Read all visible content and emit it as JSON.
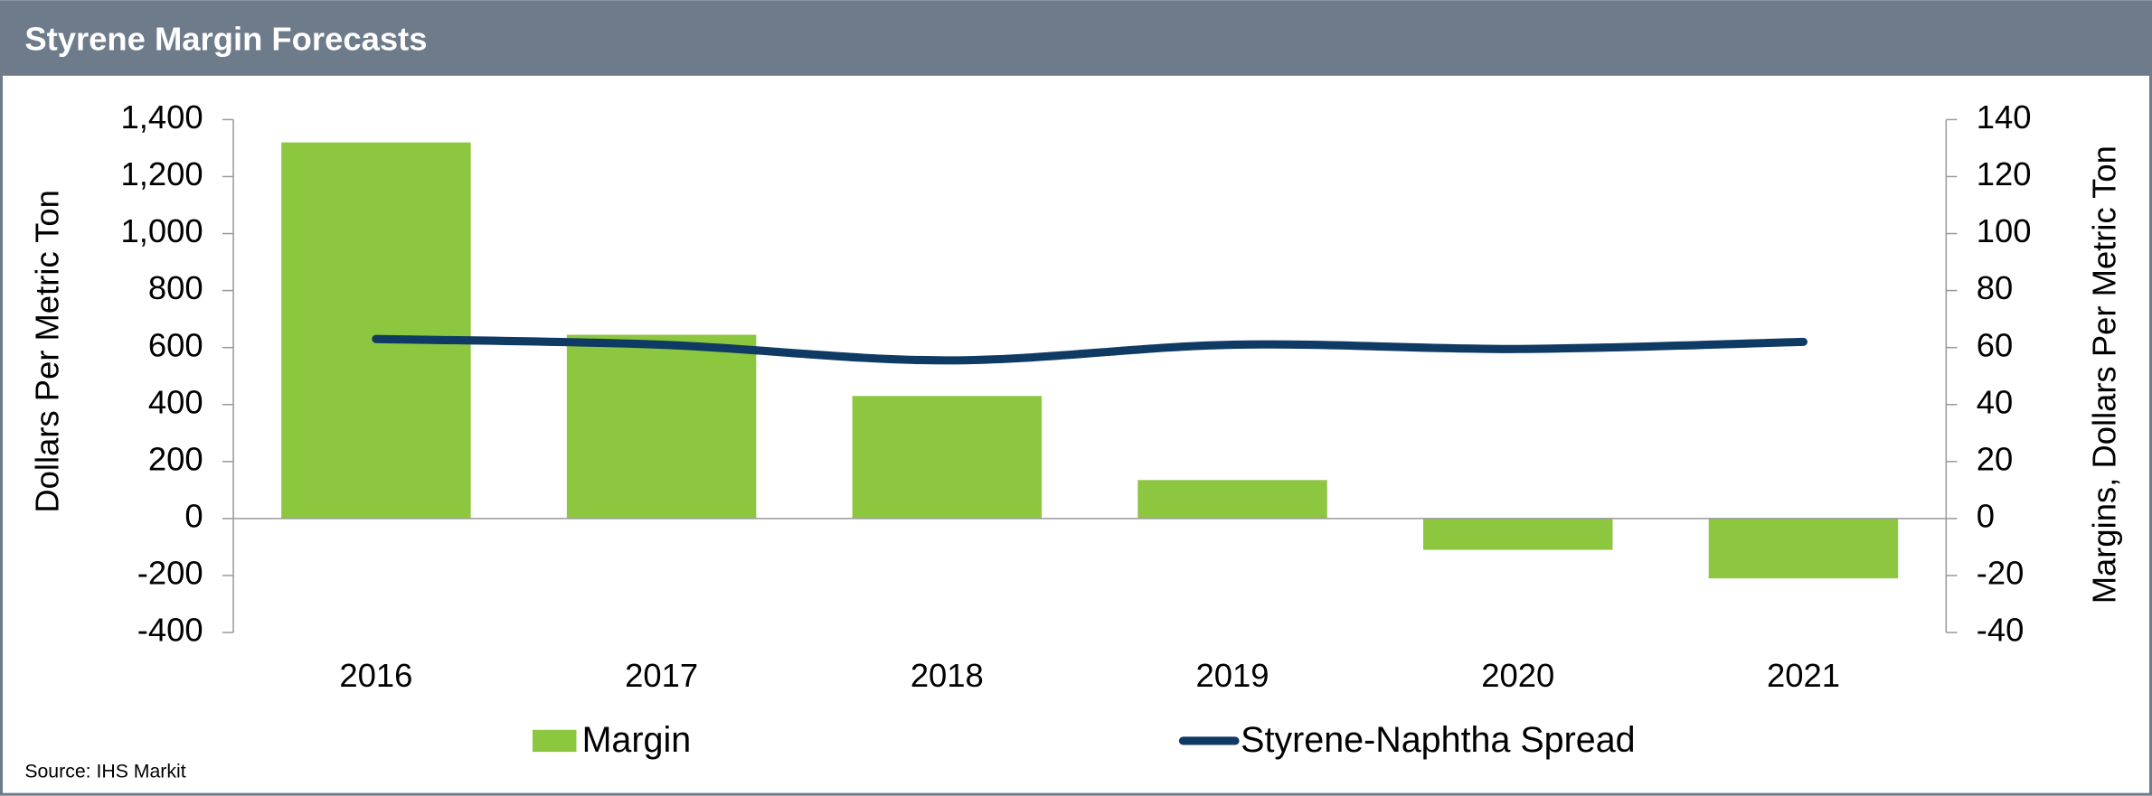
{
  "chart_data": {
    "type": "bar-line",
    "title": "Styrene Margin Forecasts",
    "ylabel": "Dollars Per Metric Ton",
    "y2label": "Margins, Dollars Per Metric Ton",
    "source": "Source: IHS Markit",
    "categories": [
      "2016",
      "2017",
      "2018",
      "2019",
      "2020",
      "2021"
    ],
    "series": [
      {
        "name": "Margin",
        "type": "bar",
        "axis": "y2",
        "color": "#8dc63f",
        "values": [
          132,
          64.5,
          43,
          13.5,
          -11,
          -21
        ]
      },
      {
        "name": "Styrene-Naphtha Spread",
        "type": "line",
        "axis": "y",
        "color": "#0e3a63",
        "values": [
          630,
          610,
          555,
          610,
          595,
          620
        ]
      }
    ],
    "ylim": [
      -400,
      1400
    ],
    "yticks": [
      -400,
      -200,
      0,
      200,
      400,
      600,
      800,
      {
        "value": 1000,
        "label": "1,000"
      },
      {
        "value": 1200,
        "label": "1,200"
      },
      {
        "value": 1400,
        "label": "1,400"
      }
    ],
    "y2lim": [
      -40,
      140
    ],
    "y2ticks": [
      -40,
      -20,
      0,
      20,
      40,
      60,
      80,
      100,
      120,
      140
    ]
  }
}
